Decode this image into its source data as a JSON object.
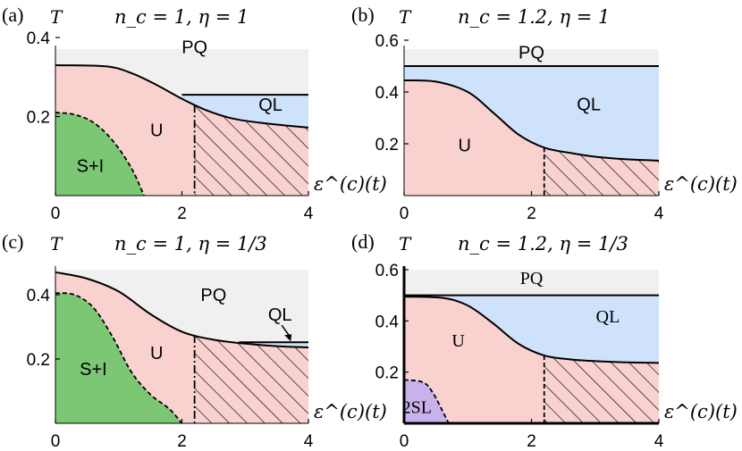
{
  "chart_data": [
    {
      "panel_label": "(a)",
      "title": "n_c = 1, η = 1",
      "xlabel": "ε^(c)(t)",
      "ylabel": "T",
      "xlim": [
        0,
        4
      ],
      "ylim": [
        0,
        0.4
      ],
      "xticks": [
        "0",
        "2",
        "4"
      ],
      "yticks": [
        "0.2",
        "0.4"
      ],
      "ytick_values": [
        0.2,
        0.4
      ],
      "regions": [
        "PQ",
        "U",
        "QL",
        "S+I"
      ],
      "upper_boundary": [
        [
          0,
          0.33
        ],
        [
          0.8,
          0.327
        ],
        [
          1.2,
          0.31
        ],
        [
          1.6,
          0.28
        ],
        [
          2.0,
          0.245
        ],
        [
          2.4,
          0.215
        ],
        [
          2.8,
          0.195
        ],
        [
          3.2,
          0.185
        ],
        [
          3.6,
          0.178
        ],
        [
          4.0,
          0.172
        ]
      ],
      "ql_boundary": {
        "x_start": 2.0,
        "T": 0.255
      },
      "si_boundary": [
        [
          0,
          0.21
        ],
        [
          0.3,
          0.205
        ],
        [
          0.6,
          0.185
        ],
        [
          0.9,
          0.14
        ],
        [
          1.2,
          0.07
        ],
        [
          1.4,
          0.0
        ]
      ],
      "hatch_from_x": 2.2,
      "colors": {
        "PQ": "#f0f0f0",
        "U": "#f9d2d0",
        "QL": "#cfe2fb",
        "SI": "#7cc774"
      }
    },
    {
      "panel_label": "(b)",
      "title": "n_c = 1.2, η = 1",
      "xlabel": "ε^(c)(t)",
      "ylabel": "T",
      "xlim": [
        0,
        4
      ],
      "ylim": [
        0,
        0.6
      ],
      "xticks": [
        "0",
        "2",
        "4"
      ],
      "yticks": [
        "0.2",
        "0.4",
        "0.6"
      ],
      "ytick_values": [
        0.2,
        0.4,
        0.6
      ],
      "regions": [
        "PQ",
        "QL",
        "U"
      ],
      "pq_boundary": {
        "T": 0.5
      },
      "upper_boundary": [
        [
          0,
          0.445
        ],
        [
          0.5,
          0.44
        ],
        [
          1.0,
          0.4
        ],
        [
          1.4,
          0.32
        ],
        [
          1.8,
          0.235
        ],
        [
          2.2,
          0.185
        ],
        [
          2.6,
          0.165
        ],
        [
          3.0,
          0.15
        ],
        [
          3.5,
          0.14
        ],
        [
          4.0,
          0.135
        ]
      ],
      "hatch_from_x": 2.2,
      "colors": {
        "PQ": "#f0f0f0",
        "U": "#f9d2d0",
        "QL": "#cfe2fb"
      }
    },
    {
      "panel_label": "(c)",
      "title": "n_c = 1, η = 1/3",
      "xlabel": "ε^(c)(t)",
      "ylabel": "T",
      "xlim": [
        0,
        4
      ],
      "ylim": [
        0,
        0.5
      ],
      "xticks": [
        "0",
        "2",
        "4"
      ],
      "yticks": [
        "0.2",
        "0.4"
      ],
      "ytick_values": [
        0.2,
        0.4
      ],
      "regions": [
        "PQ",
        "QL",
        "U",
        "S+I"
      ],
      "upper_boundary": [
        [
          0,
          0.47
        ],
        [
          0.5,
          0.45
        ],
        [
          1.0,
          0.41
        ],
        [
          1.5,
          0.34
        ],
        [
          2.0,
          0.285
        ],
        [
          2.5,
          0.26
        ],
        [
          3.0,
          0.248
        ],
        [
          3.5,
          0.24
        ],
        [
          4.0,
          0.236
        ]
      ],
      "ql_boundary": {
        "x_start": 2.9,
        "T": 0.252
      },
      "si_boundary": [
        [
          0,
          0.405
        ],
        [
          0.3,
          0.4
        ],
        [
          0.6,
          0.36
        ],
        [
          0.9,
          0.27
        ],
        [
          1.2,
          0.16
        ],
        [
          1.5,
          0.09
        ],
        [
          1.8,
          0.045
        ],
        [
          2.0,
          0.0
        ]
      ],
      "hatch_from_x": 2.2,
      "colors": {
        "PQ": "#f0f0f0",
        "U": "#f9d2d0",
        "QL": "#cfe2fb",
        "SI": "#7cc774"
      }
    },
    {
      "panel_label": "(d)",
      "title": "n_c = 1.2, η = 1/3",
      "xlabel": "ε^(c)(t)",
      "ylabel": "T",
      "xlim": [
        0,
        4
      ],
      "ylim": [
        0,
        0.6
      ],
      "xticks": [
        "0",
        "2",
        "4"
      ],
      "yticks": [
        "0.2",
        "0.4",
        "0.6"
      ],
      "ytick_values": [
        0.2,
        0.4,
        0.6
      ],
      "regions": [
        "PQ",
        "QL",
        "U",
        "2SL"
      ],
      "pq_boundary": {
        "T": 0.5
      },
      "upper_boundary": [
        [
          0,
          0.495
        ],
        [
          0.6,
          0.49
        ],
        [
          1.0,
          0.46
        ],
        [
          1.4,
          0.39
        ],
        [
          1.8,
          0.31
        ],
        [
          2.2,
          0.265
        ],
        [
          2.6,
          0.25
        ],
        [
          3.0,
          0.243
        ],
        [
          3.5,
          0.238
        ],
        [
          4.0,
          0.236
        ]
      ],
      "sl_boundary": [
        [
          0,
          0.17
        ],
        [
          0.3,
          0.16
        ],
        [
          0.45,
          0.12
        ],
        [
          0.6,
          0.05
        ],
        [
          0.7,
          0.0
        ]
      ],
      "hatch_from_x": 2.2,
      "colors": {
        "PQ": "#f0f0f0",
        "U": "#f9d2d0",
        "QL": "#cfe2fb",
        "SL": "#c9b1ec"
      }
    }
  ]
}
